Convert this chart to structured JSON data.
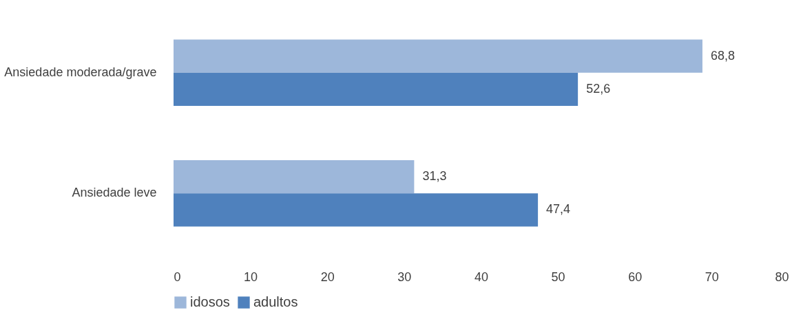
{
  "chart_data": {
    "type": "bar",
    "orientation": "horizontal",
    "categories": [
      "Ansiedade moderada/grave",
      "Ansiedade leve"
    ],
    "series": [
      {
        "name": "idosos",
        "color": "#9db7da",
        "values": [
          68.8,
          31.3
        ],
        "value_labels": [
          "68,8",
          "31,3"
        ]
      },
      {
        "name": "adultos",
        "color": "#4f81bd",
        "values": [
          52.6,
          47.4
        ],
        "value_labels": [
          "52,6",
          "47,4"
        ]
      }
    ],
    "xlim": [
      0,
      80
    ],
    "xticks": [
      0,
      10,
      20,
      30,
      40,
      50,
      60,
      70,
      80
    ],
    "grid": false,
    "legend": "bottom"
  }
}
